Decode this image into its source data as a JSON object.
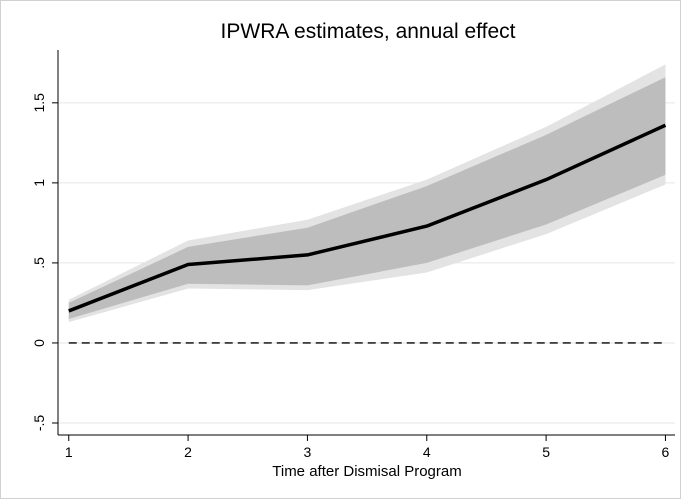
{
  "chart_data": {
    "type": "line",
    "title": "IPWRA estimates, annual effect",
    "x_label": "Time after Dismisal Program",
    "x": [
      1,
      2,
      3,
      4,
      5,
      6
    ],
    "xlim": [
      0.91,
      6.08
    ],
    "xticks": [
      1,
      2,
      3,
      4,
      5,
      6
    ],
    "ylim": [
      -0.575,
      1.83
    ],
    "yticks": [
      {
        "value": -0.5,
        "label": "-.5"
      },
      0,
      {
        "value": 0.5,
        "label": ".5"
      },
      1,
      1.5
    ],
    "grid": true,
    "reference_line": 0,
    "bands": [
      {
        "color": "#e3e3e3",
        "upper": [
          0.27,
          0.64,
          0.77,
          1.02,
          1.35,
          1.74
        ],
        "lower": [
          0.13,
          0.34,
          0.33,
          0.44,
          0.68,
          0.99
        ]
      },
      {
        "color": "#bdbdbd",
        "upper": [
          0.25,
          0.6,
          0.72,
          0.98,
          1.3,
          1.66
        ],
        "lower": [
          0.15,
          0.37,
          0.36,
          0.5,
          0.74,
          1.05
        ]
      }
    ],
    "series": [
      {
        "color": "#000000",
        "values": [
          0.2,
          0.49,
          0.55,
          0.73,
          1.02,
          1.36
        ]
      }
    ]
  }
}
